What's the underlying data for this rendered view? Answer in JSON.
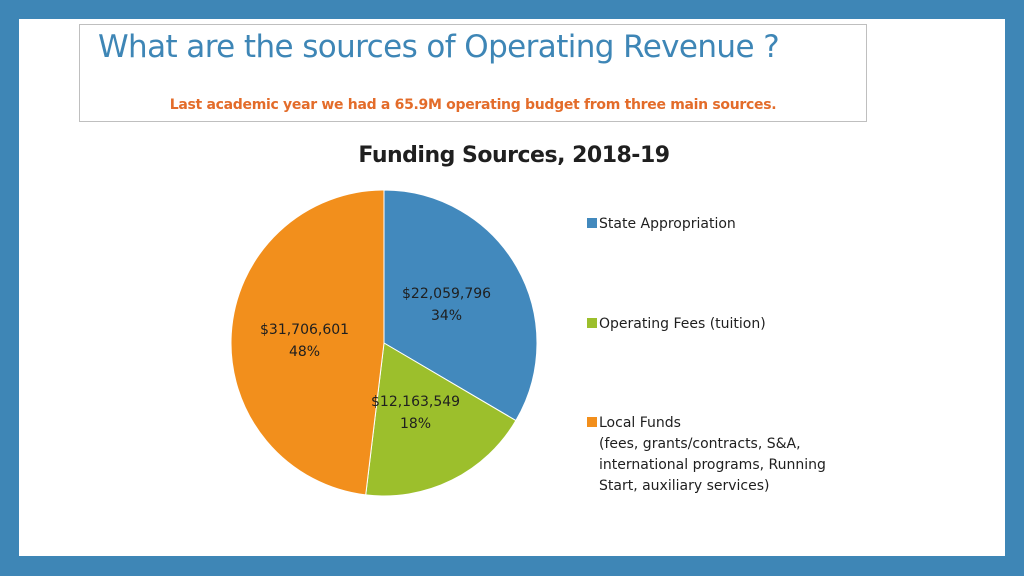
{
  "slide": {
    "title": "What are the sources of Operating Revenue ?",
    "subtitle": "Last academic year we had a 65.9M operating budget from three main sources."
  },
  "colors": {
    "frame": "#3e86b6",
    "title": "#3e86b6",
    "subtitle": "#e36c2a",
    "slices": [
      "#4289bd",
      "#9cbf2c",
      "#f28f1c"
    ]
  },
  "chart_data": {
    "type": "pie",
    "title": "Funding Sources, 2018-19",
    "categories": [
      "State Appropriation",
      "Operating Fees (tuition)",
      "Local Funds"
    ],
    "values": [
      22059796,
      12163549,
      31706601
    ],
    "value_labels": [
      "$22,059,796",
      "$12,163,549",
      "$31,706,601"
    ],
    "percent_labels": [
      "34%",
      "18%",
      "48%"
    ],
    "legend": {
      "position": "right",
      "items": [
        {
          "label": "State Appropriation",
          "detail": ""
        },
        {
          "label": "Operating Fees (tuition)",
          "detail": ""
        },
        {
          "label": "Local Funds",
          "detail": "(fees, grants/contracts, S&A, international programs, Running Start, auxiliary services)"
        }
      ]
    }
  }
}
